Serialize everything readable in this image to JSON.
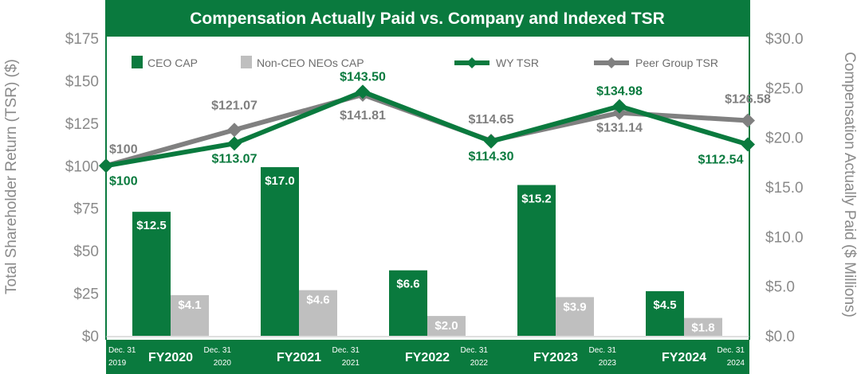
{
  "chart_data": {
    "type": "bar+line",
    "title": "Compensation Actually Paid vs. Company and Indexed TSR",
    "ylabel_left": "Total Shareholder Return (TSR) ($)",
    "ylabel_right": "Compensation Actually Paid ($ Millions)",
    "ylim_left": [
      0,
      175
    ],
    "ylim_right": [
      0,
      30
    ],
    "yticks_left": [
      "$0",
      "$25",
      "$50",
      "$75",
      "$100",
      "$125",
      "$150",
      "$175"
    ],
    "yticks_right": [
      "$0.0",
      "$5.0",
      "$10.0",
      "$15.0",
      "$20.0",
      "$25.0",
      "$30.0"
    ],
    "categories": [
      "FY2020",
      "FY2021",
      "FY2022",
      "FY2023",
      "FY2024"
    ],
    "dates": [
      {
        "line1": "Dec. 31",
        "line2": "2019"
      },
      {
        "line1": "Dec. 31",
        "line2": "2020"
      },
      {
        "line1": "Dec. 31",
        "line2": "2021"
      },
      {
        "line1": "Dec. 31",
        "line2": "2022"
      },
      {
        "line1": "Dec. 31",
        "line2": "2023"
      },
      {
        "line1": "Dec. 31",
        "line2": "2024"
      }
    ],
    "bar_series": [
      {
        "name": "CEO CAP",
        "color": "#0a7a3e",
        "values": [
          12.5,
          17.0,
          6.6,
          15.2,
          4.5
        ],
        "labels": [
          "$12.5",
          "$17.0",
          "$6.6",
          "$15.2",
          "$4.5"
        ]
      },
      {
        "name": "Non-CEO NEOs CAP",
        "color": "#bfbfbf",
        "values": [
          4.1,
          4.6,
          2.0,
          3.9,
          1.8
        ],
        "labels": [
          "$4.1",
          "$4.6",
          "$2.0",
          "$3.9",
          "$1.8"
        ]
      }
    ],
    "line_series": [
      {
        "name": "WY TSR",
        "color": "#0a7a3e",
        "values": [
          100,
          113.07,
          143.5,
          114.3,
          134.98,
          112.54
        ],
        "labels": [
          "$100",
          "$113.07",
          "$143.50",
          "$114.30",
          "$134.98",
          "$112.54"
        ]
      },
      {
        "name": "Peer Group TSR",
        "color": "#808080",
        "values": [
          100,
          121.07,
          141.81,
          114.65,
          131.14,
          126.58
        ],
        "labels": [
          "$100",
          "$121.07",
          "$141.81",
          "$114.65",
          "$131.14",
          "$126.58"
        ]
      }
    ],
    "legend": [
      {
        "name": "CEO CAP",
        "kind": "box",
        "color": "#0a7a3e"
      },
      {
        "name": "Non-CEO NEOs CAP",
        "kind": "box",
        "color": "#bfbfbf"
      },
      {
        "name": "WY TSR",
        "kind": "line",
        "color": "#0a7a3e"
      },
      {
        "name": "Peer Group TSR",
        "kind": "line",
        "color": "#808080"
      }
    ],
    "legend_position": "top"
  }
}
